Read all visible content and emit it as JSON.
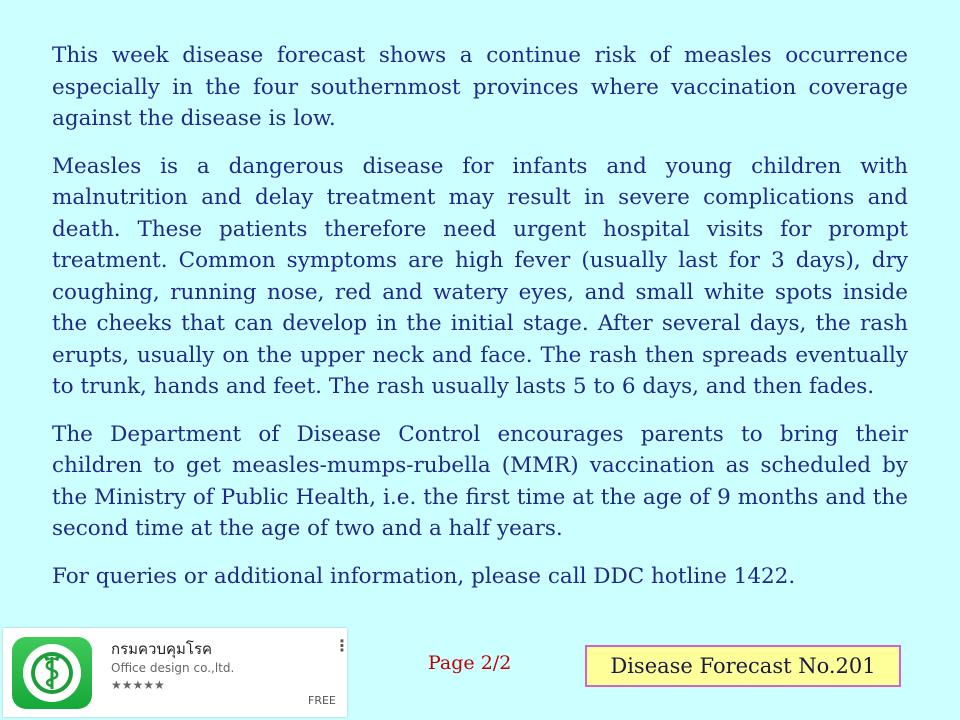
{
  "paragraphs": [
    "This week disease forecast shows a continue risk of measles occurrence especially in the four southernmost provinces where vaccination coverage against the disease is low.",
    "Measles is a dangerous disease for infants and young children with malnutrition and delay treatment may result in severe complications and death. These patients therefore need urgent hospital visits for prompt treatment. Common symptoms are high fever (usually last for 3 days), dry coughing, running nose, red and watery eyes, and small white spots inside the cheeks that can develop in the initial stage. After several days, the rash erupts, usually on the upper neck and face. The rash  then spreads eventually to trunk, hands and feet. The rash usually lasts 5 to 6 days, and then fades.",
    "The Department of Disease Control encourages parents to bring their children to get measles-mumps-rubella (MMR) vaccination as scheduled by the Ministry of Public Health, i.e. the first time at the age of  9 months and the second time at the age of two and a half years.",
    "For queries or additional information, please call DDC hotline 1422."
  ],
  "app_card": {
    "name": "กรมควบคุมโรค",
    "developer": "Office design co.,ltd.",
    "stars": "★★★★★",
    "menu": "⋮",
    "price": "FREE",
    "icon": "ddc-logo-icon",
    "icon_color": "#22b14c"
  },
  "footer": {
    "page": "Page 2/2",
    "forecast_label": "Disease Forecast No.201"
  },
  "colors": {
    "background": "#ccffff",
    "text": "#1f2a88",
    "page_number": "#c00000",
    "box_fill": "#ffff99",
    "box_border": "#cc66cc"
  }
}
